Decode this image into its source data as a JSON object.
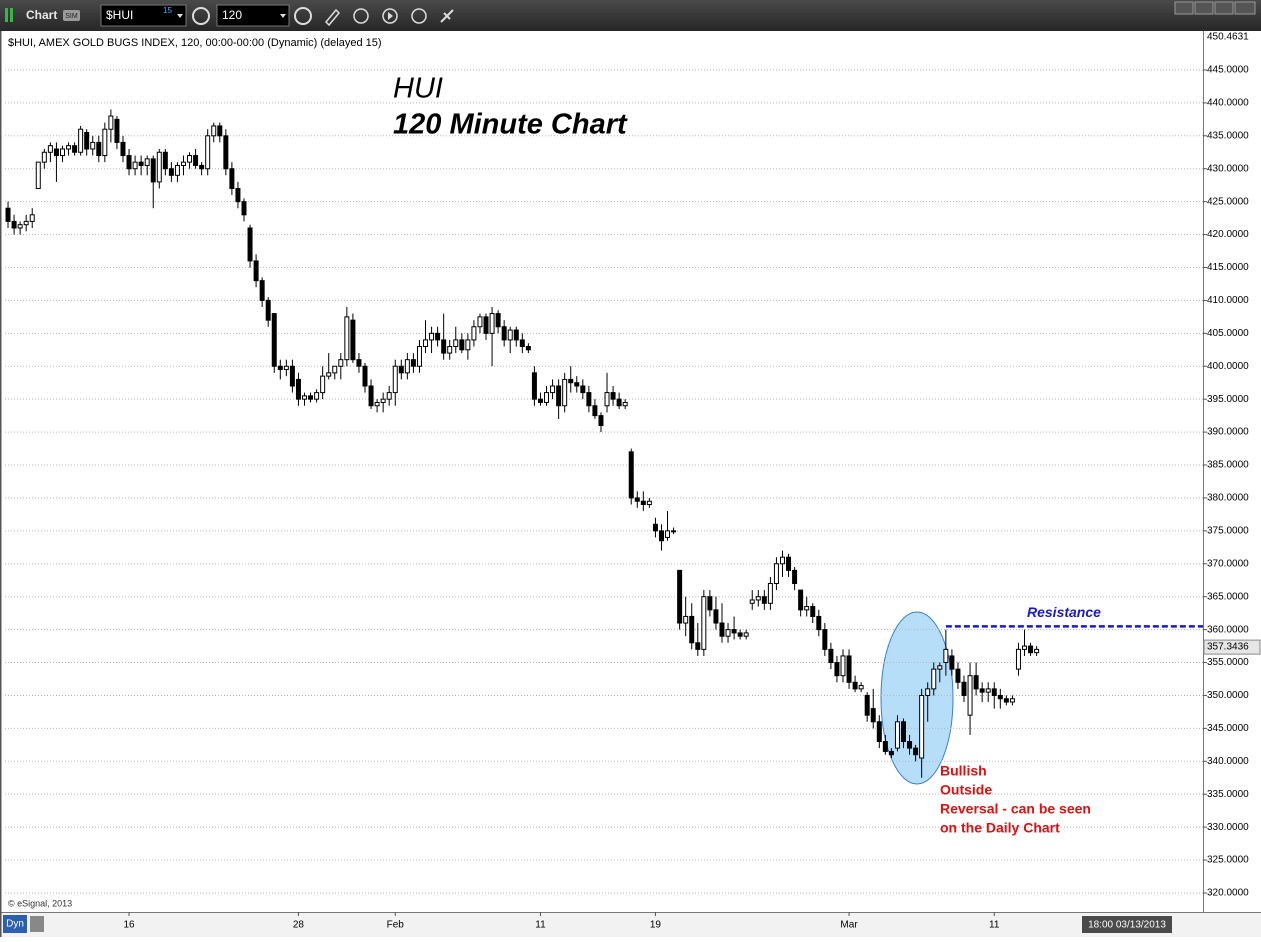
{
  "toolbar": {
    "title": "Chart",
    "mode": "SIM",
    "symbol": "$HUI",
    "symbol_badge": "15",
    "interval": "120"
  },
  "chart_data": {
    "type": "candlestick",
    "info_line": "$HUI, AMEX GOLD BUGS INDEX, 120, 00:00-00:00 (Dynamic) (delayed 15)",
    "title_lines": [
      "HUI",
      "120 Minute Chart"
    ],
    "open": [
      424,
      422,
      421,
      421.5,
      422,
      427,
      431,
      432.5,
      433,
      432,
      433,
      433.5,
      432.5,
      435.5,
      433,
      434,
      432,
      436,
      437.5,
      434,
      432,
      430,
      431,
      430.5,
      431.5,
      428,
      432.5,
      430,
      429,
      430.5,
      431,
      432,
      430.5,
      430,
      435,
      436.5,
      435,
      430,
      427,
      425,
      421,
      416,
      413,
      410,
      408,
      400,
      399.5,
      400,
      398,
      395,
      395.5,
      395,
      396,
      398.5,
      399,
      400,
      401,
      407,
      401,
      400,
      397,
      394,
      394.5,
      395,
      396,
      400,
      399,
      401,
      400,
      403,
      404,
      405,
      404,
      402,
      403,
      404,
      402.5,
      404,
      406,
      407.5,
      405,
      408,
      406,
      404,
      405.5,
      404,
      403,
      399,
      395,
      394.5,
      396,
      397,
      394,
      398,
      397.5,
      397,
      396,
      394,
      392.5,
      394,
      396,
      395,
      394,
      387,
      380,
      379.5,
      379,
      376,
      375,
      374,
      375,
      369,
      361,
      362,
      358,
      357,
      365,
      363,
      361,
      359,
      360,
      359.5,
      359,
      364,
      364.5,
      365,
      364,
      367,
      370,
      371,
      369,
      366,
      363,
      363.5,
      362,
      360,
      357,
      355,
      353,
      356,
      352,
      351,
      350,
      348,
      346,
      343,
      341.5,
      342,
      346,
      343,
      342,
      340.5,
      350,
      351,
      354,
      355,
      356,
      354,
      352,
      347,
      353,
      351,
      350.5,
      351,
      350,
      349.5,
      349,
      354,
      357,
      357.5,
      356.5
    ],
    "high": [
      425,
      423,
      422,
      423,
      424,
      431,
      433,
      434,
      434,
      433.5,
      434,
      434,
      436.5,
      436,
      435,
      435,
      437,
      439,
      438,
      435,
      433,
      432,
      432,
      432,
      432,
      433,
      433,
      431,
      431,
      432,
      432.5,
      433,
      431,
      436,
      437,
      437,
      436,
      431,
      428,
      425.5,
      421.5,
      417,
      413.5,
      410.5,
      408,
      401,
      401,
      401,
      399,
      396,
      396,
      396.5,
      400,
      402,
      400,
      402,
      409,
      408,
      402,
      400.5,
      398,
      395,
      396,
      397,
      401,
      401,
      402,
      402,
      404,
      407,
      406,
      406,
      408,
      404,
      406,
      405,
      405,
      407,
      408,
      408,
      409,
      408.5,
      407,
      406,
      406,
      405,
      403.5,
      400,
      396,
      397,
      398,
      398,
      399,
      400,
      398.5,
      398,
      397,
      395,
      393,
      399,
      397,
      396,
      395,
      387.5,
      381,
      381,
      380,
      377,
      376,
      378,
      375.5,
      369,
      365,
      364,
      361,
      366,
      366,
      365,
      364,
      361,
      362,
      360,
      360,
      366,
      366,
      366,
      368,
      371,
      372,
      371.5,
      369.5,
      366,
      365,
      364,
      363,
      361,
      358,
      356,
      357,
      357,
      353,
      352,
      350.5,
      351,
      347,
      344,
      342,
      347,
      346.5,
      344,
      342.5,
      351,
      352,
      355,
      355,
      360,
      357,
      355,
      353,
      355,
      355,
      352,
      352,
      352,
      351,
      350,
      350,
      358,
      360,
      358,
      357.5
    ],
    "low": [
      421,
      420,
      420,
      420.5,
      421,
      427,
      430,
      431,
      428,
      431,
      432,
      432,
      432,
      432,
      432,
      431,
      431,
      434,
      433,
      431,
      429,
      429,
      429,
      429,
      424,
      427,
      429,
      428,
      428,
      429,
      430,
      430,
      429,
      429,
      434,
      434,
      429,
      426,
      424,
      422,
      415,
      412,
      409,
      406,
      399,
      398,
      398.5,
      396,
      394,
      394,
      394.5,
      394.5,
      395,
      398,
      398,
      398,
      400,
      400.5,
      399,
      396,
      393.5,
      393,
      393,
      394,
      394,
      398,
      398,
      399,
      399,
      402,
      402,
      403,
      401,
      401,
      402,
      402,
      401,
      403,
      405,
      404,
      400,
      405,
      403,
      402,
      403,
      402,
      402,
      394,
      394,
      394,
      395,
      392,
      393,
      396,
      396,
      395,
      393,
      392,
      390,
      393,
      394,
      393.5,
      393.5,
      379,
      378.5,
      378,
      378.5,
      374,
      372,
      373.5,
      374.5,
      360,
      359,
      357,
      356,
      356,
      362,
      360,
      358,
      358,
      358.5,
      358.5,
      358.5,
      363,
      363.5,
      363,
      363,
      366,
      368,
      368,
      366,
      362,
      362,
      361,
      359,
      356,
      354,
      352,
      352,
      351,
      350.5,
      350.5,
      346,
      345,
      342,
      341,
      340.5,
      341.5,
      342,
      341,
      340,
      337.5,
      346,
      350,
      352,
      353,
      353,
      351,
      349,
      344,
      350,
      349,
      349,
      348,
      348,
      348.5,
      348.5,
      353,
      356,
      356,
      356
    ],
    "close": [
      422,
      421,
      421.5,
      422,
      423,
      431,
      432.5,
      433.5,
      432,
      433,
      433.5,
      432.5,
      436,
      433,
      434,
      432,
      436,
      438,
      434,
      432,
      430,
      431,
      430.5,
      431.5,
      428,
      432.5,
      430,
      429,
      430.5,
      431,
      432,
      430.5,
      430,
      435,
      436.5,
      435,
      430,
      427,
      425,
      423,
      416,
      413,
      410,
      407,
      400,
      399.5,
      400,
      397,
      395,
      395.5,
      395,
      396,
      398.5,
      399,
      400,
      401,
      407.5,
      401,
      400,
      397,
      394,
      394.5,
      395,
      396,
      400,
      399,
      401,
      400,
      403,
      404,
      405,
      404,
      402,
      403,
      404,
      402.5,
      404,
      406,
      407.5,
      405,
      408,
      406,
      404,
      405.5,
      404,
      403,
      402.5,
      395,
      394.5,
      396,
      397,
      394,
      398,
      397.5,
      397,
      396,
      394,
      392.5,
      391,
      396,
      395,
      394,
      394.5,
      380,
      379.5,
      379,
      379.5,
      375,
      373.5,
      375,
      375,
      361,
      362,
      358,
      357,
      365,
      363,
      361,
      359,
      360,
      359.5,
      359,
      359.5,
      364.5,
      365,
      364,
      367,
      370,
      371,
      369,
      367,
      363,
      363.5,
      362,
      360,
      357,
      355,
      353,
      356,
      352,
      351,
      351.5,
      347,
      346,
      343,
      341.5,
      341,
      346,
      343,
      342,
      341,
      350,
      351,
      354,
      354.5,
      357,
      354,
      352,
      350,
      353,
      351,
      350.5,
      351,
      350,
      349.5,
      349,
      349.5,
      357,
      357.5,
      356.5,
      357
    ],
    "up_color": "#ffffff",
    "down_color": "#000000",
    "xlim": [
      -0.5,
      197.5
    ],
    "xticks": [
      {
        "value": 20,
        "label": "16"
      },
      {
        "value": 48,
        "label": "28"
      },
      {
        "value": 64,
        "label": "Feb"
      },
      {
        "value": 88,
        "label": "11"
      },
      {
        "value": 107,
        "label": "19"
      },
      {
        "value": 139,
        "label": "Mar"
      },
      {
        "value": 163,
        "label": "11"
      }
    ],
    "ylim": [
      317.11,
      450.4631
    ],
    "yticks": [
      {
        "value": 320,
        "label": "320.0000"
      },
      {
        "value": 325,
        "label": "325.0000"
      },
      {
        "value": 330,
        "label": "330.0000"
      },
      {
        "value": 335,
        "label": "335.0000"
      },
      {
        "value": 340,
        "label": "340.0000"
      },
      {
        "value": 345,
        "label": "345.0000"
      },
      {
        "value": 350,
        "label": "350.0000"
      },
      {
        "value": 355,
        "label": "355.0000"
      },
      {
        "value": 360,
        "label": "360.0000"
      },
      {
        "value": 365,
        "label": "365.0000"
      },
      {
        "value": 370,
        "label": "370.0000"
      },
      {
        "value": 375,
        "label": "375.0000"
      },
      {
        "value": 380,
        "label": "380.0000"
      },
      {
        "value": 385,
        "label": "385.0000"
      },
      {
        "value": 390,
        "label": "390.0000"
      },
      {
        "value": 395,
        "label": "395.0000"
      },
      {
        "value": 400,
        "label": "400.0000"
      },
      {
        "value": 405,
        "label": "405.0000"
      },
      {
        "value": 410,
        "label": "410.0000"
      },
      {
        "value": 415,
        "label": "415.0000"
      },
      {
        "value": 420,
        "label": "420.0000"
      },
      {
        "value": 425,
        "label": "425.0000"
      },
      {
        "value": 430,
        "label": "430.0000"
      },
      {
        "value": 435,
        "label": "435.0000"
      },
      {
        "value": 440,
        "label": "440.0000"
      },
      {
        "value": 445,
        "label": "445.0000"
      }
    ],
    "grid": true,
    "last_price": 357.3436,
    "resistance": {
      "label": "Resistance",
      "value": 360.5,
      "start": 155,
      "color": "#1a1acc"
    },
    "annotation": [
      "Bullish",
      "Outside",
      "Reversal - can be seen",
      "on the Daily Chart"
    ]
  },
  "footer": {
    "copyright": "© eSignal, 2013",
    "mode": "Dyn",
    "timestamp": "18:00 03/13/2013"
  }
}
